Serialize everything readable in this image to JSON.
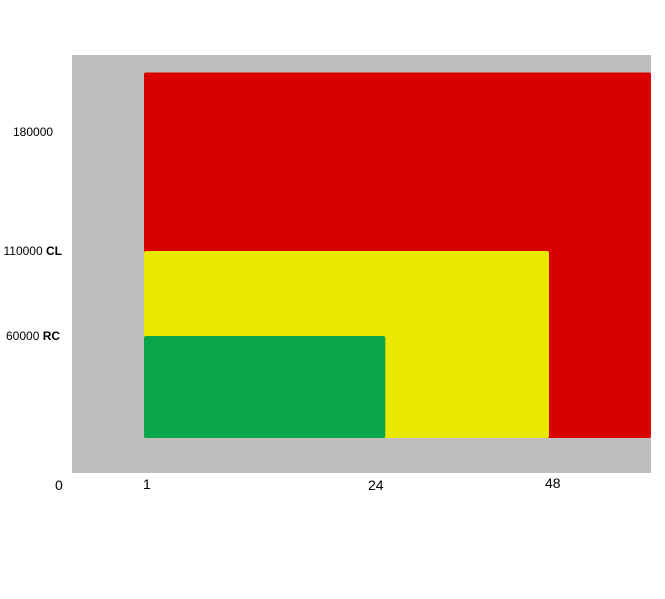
{
  "chart_data": {
    "type": "area",
    "title": "",
    "xlabel": "",
    "ylabel": "",
    "x_ticks": [
      {
        "value": 0,
        "label": "0"
      },
      {
        "value": 1,
        "label": "1"
      },
      {
        "value": 24,
        "label": "24"
      },
      {
        "value": 48,
        "label": "48"
      }
    ],
    "y_ticks": [
      {
        "value": 180000,
        "label": "180000",
        "tag": ""
      },
      {
        "value": 110000,
        "label": "110000",
        "tag": "CL"
      },
      {
        "value": 60000,
        "label": "60000",
        "tag": "RC"
      }
    ],
    "zones": [
      {
        "name": "red-zone",
        "color": "#D90000",
        "x_start": 1,
        "x_end": 61,
        "y_end": 215000
      },
      {
        "name": "yellow-zone",
        "color": "#EBE800",
        "x_start": 1,
        "x_end": 48,
        "y_end": 110000
      },
      {
        "name": "green-zone",
        "color": "#09A64A",
        "x_start": 1,
        "x_end": 29,
        "y_end": 60000
      }
    ],
    "plot_background": "#BEBEBE",
    "grid": false,
    "legend": "none"
  }
}
